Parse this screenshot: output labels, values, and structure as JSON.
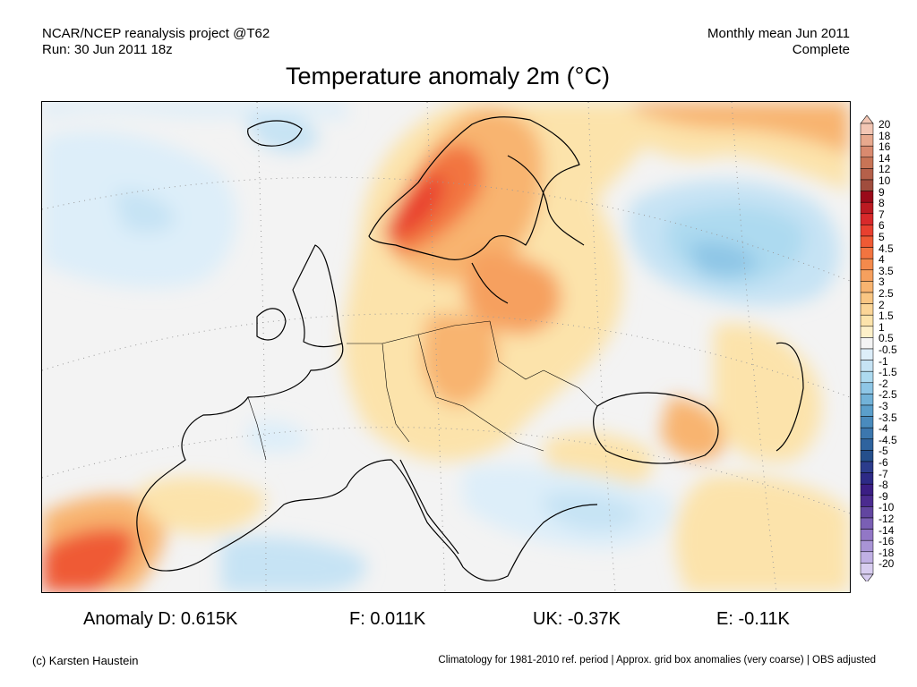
{
  "header": {
    "project": "NCAR/NCEP reanalysis project @T62",
    "run": "Run: 30 Jun 2011 18z",
    "period": "Monthly mean Jun 2011",
    "status": "Complete"
  },
  "title": "Temperature anomaly 2m (°C)",
  "colorbar": {
    "labels": [
      "20",
      "18",
      "16",
      "14",
      "12",
      "10",
      "9",
      "8",
      "7",
      "6",
      "5",
      "4.5",
      "4",
      "3.5",
      "3",
      "2.5",
      "2",
      "1.5",
      "1",
      "0.5",
      "-0.5",
      "-1",
      "-1.5",
      "-2",
      "-2.5",
      "-3",
      "-3.5",
      "-4",
      "-4.5",
      "-5",
      "-6",
      "-7",
      "-8",
      "-9",
      "-10",
      "-12",
      "-14",
      "-16",
      "-18",
      "-20"
    ],
    "colors": [
      "#f3c6b4",
      "#e8a98e",
      "#d98a6f",
      "#c87456",
      "#b5604a",
      "#a04d3d",
      "#9a0a1a",
      "#bb1a22",
      "#d8292b",
      "#e8402f",
      "#ef5a34",
      "#f27440",
      "#f48a4c",
      "#f6a05e",
      "#f8b470",
      "#f9c683",
      "#fbd597",
      "#fce3ab",
      "#fdf0c9",
      "#f4f4f4",
      "#ddeef9",
      "#c6e3f4",
      "#addaf0",
      "#8ec6e6",
      "#72b2d8",
      "#5b9fcb",
      "#4a8bbd",
      "#3c77ae",
      "#2f639e",
      "#254f8c",
      "#2c3c8c",
      "#2d2a86",
      "#3b1e84",
      "#4b2b8f",
      "#6246a0",
      "#7a5fb4",
      "#9277c6",
      "#a994d6",
      "#c0b0e4",
      "#d8cdf0"
    ]
  },
  "stats": {
    "germany": "Anomaly D: 0.615K",
    "france": "F: 0.011K",
    "uk": "UK: -0.37K",
    "spain": "E: -0.11K"
  },
  "footer": {
    "copyright": "(c) Karsten Haustein",
    "note": "Climatology for 1981-2010 ref. period | Approx. grid box anomalies (very coarse) | OBS adjusted"
  }
}
